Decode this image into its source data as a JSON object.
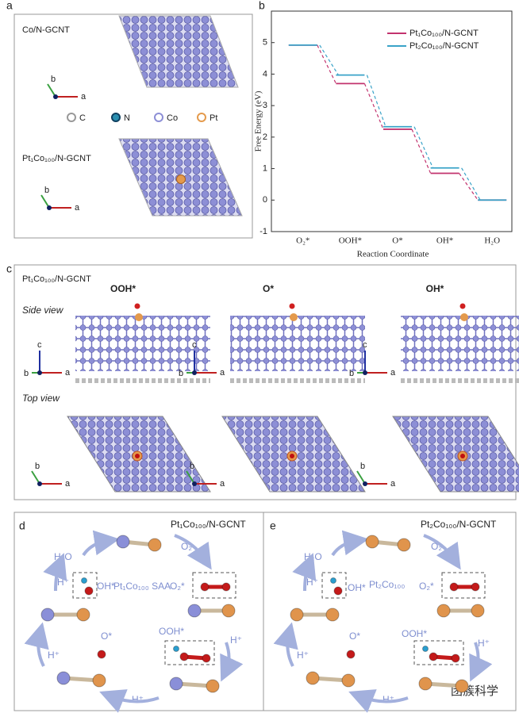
{
  "panel_labels": [
    "a",
    "b",
    "c",
    "d",
    "e"
  ],
  "panel_a": {
    "top_label": "Co/N-GCNT",
    "bottom_label": "Pt₁Co₁₀₀/N-GCNT",
    "legend": [
      "C",
      "N",
      "Co",
      "Pt"
    ],
    "axes": [
      "b",
      "a"
    ]
  },
  "chart_data": {
    "type": "step",
    "y_label": "Free Energy (eV)",
    "x_label": "Reaction Coordinate",
    "categories": [
      "O₂*",
      "OOH*",
      "O*",
      "OH*",
      "H₂O"
    ],
    "series": [
      {
        "name": "Pt₁Co₁₀₀/N-GCNT",
        "color": "#c2336e",
        "values": [
          4.92,
          3.7,
          2.25,
          0.85,
          0
        ]
      },
      {
        "name": "Pt₂Co₁₀₀/N-GCNT",
        "color": "#3aa3c8",
        "values": [
          4.92,
          3.97,
          2.33,
          1.02,
          0
        ]
      }
    ],
    "ylim": [
      -1,
      6
    ],
    "yticks": [
      -1,
      0,
      1,
      2,
      3,
      4,
      5
    ],
    "legend": "upper right"
  },
  "panel_c": {
    "title": "Pt₁Co₁₀₀/N-GCNT",
    "columns": [
      "OOH*",
      "O*",
      "OH*"
    ],
    "rows": [
      "Side view",
      "Top view"
    ],
    "axes": [
      "a",
      "b",
      "c"
    ]
  },
  "panel_d": {
    "title": "Pt₁Co₁₀₀/N-GCNT",
    "start": "Pt₁Co₁₀₀ SAA",
    "h2o": "H₂O",
    "o2": "O₂",
    "o2_ads": "O₂*",
    "ooh": "OOH*",
    "o": "O*",
    "oh": "OH*",
    "proton": "H⁺"
  },
  "panel_e": {
    "title": "Pt₂Co₁₀₀/N-GCNT",
    "start": "Pt₂Co₁₀₀",
    "h2o": "H₂O",
    "o2": "O₂",
    "o2_ads": "O₂*",
    "ooh": "OOH*",
    "o": "O*",
    "oh": "OH*",
    "proton": "H⁺"
  },
  "watermark": "团簇科学"
}
